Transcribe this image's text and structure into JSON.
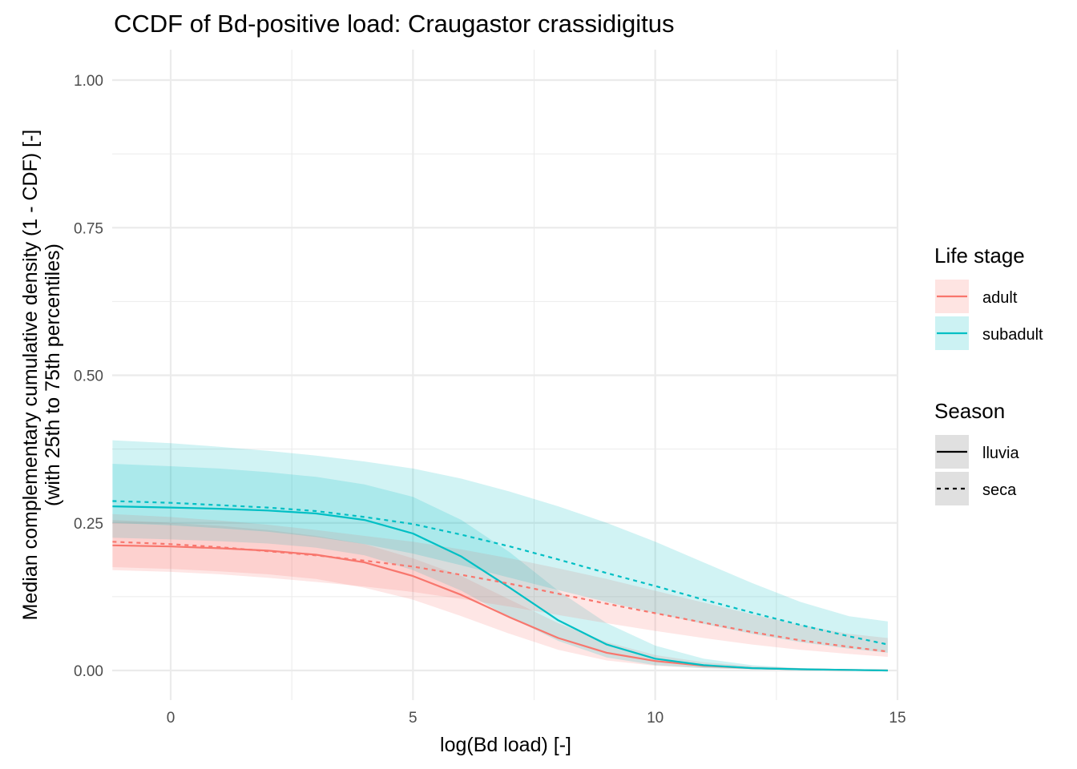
{
  "chart_data": {
    "type": "line",
    "title": "CCDF of Bd-positive load: Craugastor crassidigitus",
    "xlabel": "log(Bd load) [-]",
    "ylabel_line1": "Median complementary cumulative density (1 - CDF) [-]",
    "ylabel_line2": "(with 25th to 75th percentiles)",
    "xlim": [
      -1.25,
      15
    ],
    "ylim": [
      -0.05,
      1.05
    ],
    "x_ticks": [
      0,
      5,
      10,
      15
    ],
    "x_tick_labels": [
      "0",
      "5",
      "10",
      "15"
    ],
    "y_ticks": [
      0,
      0.25,
      0.5,
      0.75,
      1.0
    ],
    "y_tick_labels": [
      "0.00",
      "0.25",
      "0.50",
      "0.75",
      "1.00"
    ],
    "grid": true,
    "legend": {
      "placement": "right",
      "life_stage_title": "Life stage",
      "life_stage_items": [
        {
          "label": "adult",
          "color": "#F8766D"
        },
        {
          "label": "subadult",
          "color": "#00BFC4"
        }
      ],
      "season_title": "Season",
      "season_items": [
        {
          "label": "lluvia",
          "linetype": "solid"
        },
        {
          "label": "seca",
          "linetype": "dashed"
        }
      ]
    },
    "x": [
      -1.2,
      0,
      1,
      2,
      3,
      4,
      5,
      6,
      7,
      8,
      9,
      10,
      11,
      12,
      13,
      14,
      14.8
    ],
    "series": [
      {
        "life_stage": "adult",
        "season": "lluvia",
        "color": "#F8766D",
        "linetype": "solid",
        "median": [
          0.212,
          0.21,
          0.207,
          0.203,
          0.196,
          0.183,
          0.16,
          0.128,
          0.09,
          0.055,
          0.03,
          0.016,
          0.008,
          0.004,
          0.002,
          0.001,
          0.0
        ],
        "lower": [
          0.175,
          0.172,
          0.168,
          0.163,
          0.155,
          0.14,
          0.12,
          0.092,
          0.062,
          0.035,
          0.017,
          0.008,
          0.004,
          0.002,
          0.001,
          0.0,
          0.0
        ],
        "upper": [
          0.255,
          0.25,
          0.245,
          0.238,
          0.228,
          0.214,
          0.19,
          0.16,
          0.12,
          0.08,
          0.048,
          0.026,
          0.014,
          0.007,
          0.004,
          0.002,
          0.001
        ]
      },
      {
        "life_stage": "subadult",
        "season": "lluvia",
        "color": "#00BFC4",
        "linetype": "solid",
        "median": [
          0.278,
          0.276,
          0.274,
          0.271,
          0.266,
          0.255,
          0.232,
          0.193,
          0.14,
          0.085,
          0.044,
          0.02,
          0.009,
          0.004,
          0.002,
          0.001,
          0.0
        ],
        "lower": [
          0.225,
          0.222,
          0.219,
          0.215,
          0.208,
          0.195,
          0.17,
          0.135,
          0.09,
          0.05,
          0.022,
          0.009,
          0.004,
          0.002,
          0.001,
          0.0,
          0.0
        ],
        "upper": [
          0.35,
          0.346,
          0.342,
          0.336,
          0.328,
          0.315,
          0.294,
          0.255,
          0.2,
          0.135,
          0.08,
          0.042,
          0.02,
          0.009,
          0.004,
          0.002,
          0.001
        ]
      },
      {
        "life_stage": "adult",
        "season": "seca",
        "color": "#F8766D",
        "linetype": "dashed",
        "median": [
          0.218,
          0.214,
          0.209,
          0.202,
          0.195,
          0.186,
          0.176,
          0.162,
          0.147,
          0.13,
          0.113,
          0.097,
          0.081,
          0.065,
          0.051,
          0.04,
          0.032
        ],
        "lower": [
          0.17,
          0.167,
          0.163,
          0.157,
          0.15,
          0.142,
          0.133,
          0.121,
          0.108,
          0.094,
          0.08,
          0.067,
          0.055,
          0.044,
          0.035,
          0.028,
          0.023
        ],
        "upper": [
          0.265,
          0.26,
          0.254,
          0.247,
          0.238,
          0.228,
          0.218,
          0.205,
          0.19,
          0.173,
          0.155,
          0.135,
          0.115,
          0.095,
          0.077,
          0.062,
          0.055
        ]
      },
      {
        "life_stage": "subadult",
        "season": "seca",
        "color": "#00BFC4",
        "linetype": "dashed",
        "median": [
          0.287,
          0.284,
          0.28,
          0.276,
          0.27,
          0.26,
          0.248,
          0.23,
          0.21,
          0.188,
          0.165,
          0.143,
          0.12,
          0.098,
          0.077,
          0.058,
          0.044
        ],
        "lower": [
          0.25,
          0.246,
          0.241,
          0.235,
          0.226,
          0.214,
          0.198,
          0.178,
          0.157,
          0.136,
          0.116,
          0.097,
          0.079,
          0.062,
          0.048,
          0.037,
          0.03
        ],
        "upper": [
          0.39,
          0.385,
          0.379,
          0.372,
          0.364,
          0.354,
          0.342,
          0.325,
          0.303,
          0.278,
          0.25,
          0.218,
          0.183,
          0.148,
          0.116,
          0.092,
          0.083
        ]
      }
    ]
  }
}
